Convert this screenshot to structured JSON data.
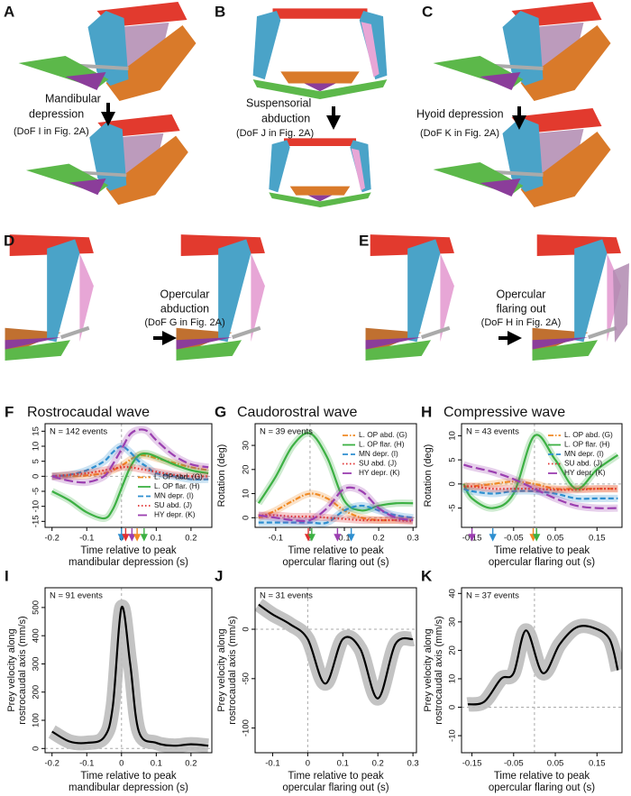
{
  "panels": [
    {
      "letter": "A",
      "caption": [
        "Mandibular",
        "depression"
      ],
      "dof": "(DoF I in Fig. 2A)"
    },
    {
      "letter": "B",
      "caption": [
        "Suspensorial",
        "abduction"
      ],
      "dof": "(DoF J in Fig. 2A)"
    },
    {
      "letter": "C",
      "caption": [
        "Hyoid depression"
      ],
      "dof": "(DoF K in Fig. 2A)"
    },
    {
      "letter": "D",
      "caption": [
        "Opercular",
        "abduction"
      ],
      "dof": "(DoF G in Fig. 2A)"
    },
    {
      "letter": "E",
      "caption": [
        "Opercular",
        "flaring out"
      ],
      "dof": "(DoF H in Fig. 2A)"
    }
  ],
  "chart_data": [
    {
      "type": "line",
      "letter": "F",
      "title": "Rostrocaudal wave",
      "annotation": "N = 142 events",
      "xlabel": [
        "Time relative to peak",
        "mandibular depression (s)"
      ],
      "ylabel": [],
      "x": [
        -0.2,
        -0.15,
        -0.1,
        -0.05,
        -0.025,
        0,
        0.025,
        0.05,
        0.075,
        0.1,
        0.15,
        0.2,
        0.25
      ],
      "series": [
        {
          "name": "L. OP abd. (G)",
          "color": "#f08a24",
          "style": "dashdot",
          "values": [
            0,
            0,
            0.3,
            1,
            2,
            3.5,
            5.5,
            7,
            6.8,
            6,
            4.5,
            3,
            2
          ]
        },
        {
          "name": "L. OP flar. (H)",
          "color": "#3cb043",
          "style": "solid",
          "values": [
            -5,
            -8,
            -12,
            -14,
            -11,
            -4,
            3,
            7,
            7.5,
            6.5,
            4,
            2,
            1
          ]
        },
        {
          "name": "MN depr. (I)",
          "color": "#2f8fd0",
          "style": "dashed",
          "values": [
            0,
            0.5,
            2,
            5,
            8,
            10,
            8,
            5,
            3,
            1,
            0,
            -1,
            -1
          ]
        },
        {
          "name": "SU abd. (J)",
          "color": "#e03030",
          "style": "dotted",
          "values": [
            0,
            0.5,
            1,
            2,
            2.5,
            3,
            3,
            2.5,
            2,
            1.5,
            0.5,
            0,
            0
          ]
        },
        {
          "name": "HY depr. (K)",
          "color": "#9b3fb0",
          "style": "longdash",
          "values": [
            0,
            -1.5,
            -2,
            0,
            4,
            9,
            14,
            15.5,
            15,
            12,
            7,
            4,
            3
          ]
        }
      ],
      "markers": [
        {
          "x": 0,
          "color": "#2f8fd0"
        },
        {
          "x": 0.012,
          "color": "#e03030"
        },
        {
          "x": 0.03,
          "color": "#9b3fb0"
        },
        {
          "x": 0.045,
          "color": "#f08a24"
        },
        {
          "x": 0.065,
          "color": "#3cb043"
        }
      ],
      "xlim": [
        -0.22,
        0.26
      ],
      "ylim": [
        -17,
        17.5
      ],
      "xticks": [
        -0.2,
        -0.1,
        0,
        0.1,
        0.2
      ],
      "yticks": [
        -15,
        -10,
        -5,
        0,
        5,
        10,
        15
      ],
      "hlines": [
        0
      ],
      "vlines": [
        0
      ],
      "legend": "lower right"
    },
    {
      "type": "line",
      "letter": "G",
      "title": "Caudorostral wave",
      "annotation": "N = 39 events",
      "xlabel": [
        "Time relative to peak",
        "opercular flaring out (s)"
      ],
      "ylabel": [
        "Rotation (deg)"
      ],
      "x": [
        -0.15,
        -0.1,
        -0.05,
        0,
        0.05,
        0.1,
        0.15,
        0.2,
        0.25,
        0.3
      ],
      "series": [
        {
          "name": "L. OP abd. (G)",
          "color": "#f08a24",
          "style": "dashdot",
          "values": [
            0,
            3,
            7,
            10,
            8,
            3,
            0,
            -1,
            -1,
            -1
          ]
        },
        {
          "name": "L. OP flar. (H)",
          "color": "#3cb043",
          "style": "solid",
          "values": [
            6,
            17,
            30,
            35,
            25,
            7,
            3,
            5,
            6,
            6
          ]
        },
        {
          "name": "MN depr. (I)",
          "color": "#2f8fd0",
          "style": "dashed",
          "values": [
            -2,
            -2,
            -2,
            -2,
            -2,
            3,
            5,
            3,
            1,
            0
          ]
        },
        {
          "name": "SU abd. (J)",
          "color": "#e03030",
          "style": "dotted",
          "values": [
            1,
            1,
            0.5,
            0.5,
            0,
            -0.5,
            -1,
            -1,
            -1,
            -1.5
          ]
        },
        {
          "name": "HY depr. (K)",
          "color": "#9b3fb0",
          "style": "longdash",
          "values": [
            1,
            0,
            -1,
            -1,
            4,
            12,
            11,
            4,
            0,
            -1
          ]
        }
      ],
      "markers": [
        {
          "x": -0.005,
          "color": "#e03030"
        },
        {
          "x": 0.005,
          "color": "#3cb043"
        },
        {
          "x": 0.08,
          "color": "#9b3fb0"
        },
        {
          "x": 0.12,
          "color": "#2f8fd0"
        }
      ],
      "xlim": [
        -0.16,
        0.31
      ],
      "ylim": [
        -4,
        39
      ],
      "xticks": [
        -0.1,
        0,
        0.1,
        0.2,
        0.3
      ],
      "yticks": [
        0,
        10,
        20,
        30
      ],
      "hlines": [
        0
      ],
      "vlines": [
        0
      ],
      "legend": "upper right"
    },
    {
      "type": "line",
      "letter": "H",
      "title": "Compressive wave",
      "annotation": "N = 43 events",
      "xlabel": [
        "Time relative to peak",
        "opercular flaring out (s)"
      ],
      "ylabel": [
        "Rotation (deg)"
      ],
      "x": [
        -0.17,
        -0.15,
        -0.1,
        -0.05,
        0,
        0.05,
        0.1,
        0.15,
        0.2
      ],
      "series": [
        {
          "name": "L. OP abd. (G)",
          "color": "#f08a24",
          "style": "dashdot",
          "values": [
            -0.5,
            -0.5,
            0,
            0.5,
            0,
            -1,
            -1,
            -1,
            -1
          ]
        },
        {
          "name": "L. OP flar. (H)",
          "color": "#3cb043",
          "style": "solid",
          "values": [
            0,
            -3,
            -5,
            -2,
            10,
            5,
            -1,
            3,
            6
          ]
        },
        {
          "name": "MN depr. (I)",
          "color": "#2f8fd0",
          "style": "dashed",
          "values": [
            -1,
            -1.5,
            -2,
            -1.5,
            -1.5,
            -2,
            -3,
            -3,
            -3
          ]
        },
        {
          "name": "SU abd. (J)",
          "color": "#e03030",
          "style": "dotted",
          "values": [
            -0.5,
            -0.5,
            -1,
            -1,
            -1,
            -1.2,
            -1.2,
            -1,
            -1
          ]
        },
        {
          "name": "HY depr. (K)",
          "color": "#9b3fb0",
          "style": "longdash",
          "values": [
            4,
            3.5,
            2.5,
            1,
            -1,
            -3,
            -4.5,
            -5,
            -5
          ]
        }
      ],
      "markers": [
        {
          "x": -0.15,
          "color": "#9b3fb0"
        },
        {
          "x": -0.1,
          "color": "#2f8fd0"
        },
        {
          "x": -0.003,
          "color": "#f08a24"
        },
        {
          "x": 0.005,
          "color": "#3cb043"
        }
      ],
      "xlim": [
        -0.175,
        0.21
      ],
      "ylim": [
        -9,
        12.5
      ],
      "xticks": [
        -0.15,
        -0.05,
        0.05,
        0.15
      ],
      "yticks": [
        -5,
        0,
        5,
        10
      ],
      "hlines": [
        0
      ],
      "vlines": [
        0
      ],
      "legend": "upper right"
    },
    {
      "type": "line",
      "letter": "I",
      "annotation": "N = 91 events",
      "xlabel": [
        "Time relative to peak",
        "mandibular depression (s)"
      ],
      "ylabel": [
        "Prey velocity along",
        "rostrocaudal axis (mm/s)"
      ],
      "x": [
        -0.2,
        -0.15,
        -0.1,
        -0.05,
        -0.025,
        0,
        0.025,
        0.05,
        0.1,
        0.15,
        0.2,
        0.25
      ],
      "series": [
        {
          "color": "#000000",
          "style": "solid",
          "values": [
            60,
            25,
            20,
            40,
            150,
            500,
            300,
            60,
            20,
            10,
            15,
            10
          ]
        }
      ],
      "xlim": [
        -0.22,
        0.26
      ],
      "ylim": [
        -15,
        570
      ],
      "xticks": [
        -0.2,
        -0.1,
        0,
        0.1,
        0.2
      ],
      "yticks": [
        0,
        100,
        200,
        300,
        400,
        500
      ],
      "hlines": [
        0
      ],
      "vlines": [
        0
      ]
    },
    {
      "type": "line",
      "letter": "J",
      "annotation": "N = 31 events",
      "xlabel": [
        "Time relative to peak",
        "opercular flaring out (s)"
      ],
      "ylabel": [
        "Prey velocity along",
        "rostrocaudal axis (mm/s)"
      ],
      "x": [
        -0.14,
        -0.1,
        -0.05,
        0,
        0.05,
        0.1,
        0.15,
        0.2,
        0.25,
        0.3
      ],
      "series": [
        {
          "color": "#000000",
          "style": "solid",
          "values": [
            25,
            15,
            5,
            -10,
            -55,
            -10,
            -20,
            -70,
            -15,
            -10
          ]
        }
      ],
      "xlim": [
        -0.15,
        0.31
      ],
      "ylim": [
        -125,
        42
      ],
      "xticks": [
        -0.1,
        0,
        0.1,
        0.2,
        0.3
      ],
      "yticks": [
        -100,
        -50,
        0
      ],
      "hlines": [
        0
      ],
      "vlines": [
        0
      ]
    },
    {
      "type": "line",
      "letter": "K",
      "annotation": "N = 37 events",
      "xlabel": [
        "Time relative to peak",
        "opercular flaring out (s)"
      ],
      "ylabel": [
        "Prey velocity along",
        "rostrocaudal axis (mm/s)"
      ],
      "x": [
        -0.16,
        -0.12,
        -0.08,
        -0.05,
        -0.02,
        0.02,
        0.06,
        0.1,
        0.14,
        0.18,
        0.2
      ],
      "series": [
        {
          "color": "#000000",
          "style": "solid",
          "values": [
            1,
            2,
            10,
            12,
            27,
            12,
            22,
            28,
            28,
            24,
            13
          ]
        }
      ],
      "xlim": [
        -0.175,
        0.21
      ],
      "ylim": [
        -16,
        42
      ],
      "xticks": [
        -0.15,
        -0.05,
        0.05,
        0.15
      ],
      "yticks": [
        -10,
        0,
        10,
        20,
        30,
        40
      ],
      "hlines": [
        0
      ],
      "vlines": [
        0
      ]
    }
  ]
}
